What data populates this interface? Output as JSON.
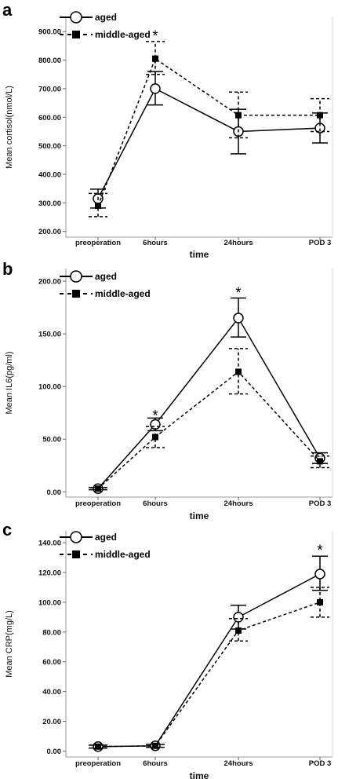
{
  "chart_data": [
    {
      "type": "line",
      "panel_label": "a",
      "ylabel": "Mean cortisol(nmol/L)",
      "xlabel": "time",
      "categories": [
        "preoperation",
        "6hours",
        "24hours",
        "POD 3"
      ],
      "yticks": [
        "200.00",
        "300.00",
        "400.00",
        "500.00",
        "600.00",
        "700.00",
        "800.00",
        "900.00"
      ],
      "ylim": [
        180,
        950
      ],
      "legend_position": "top-left",
      "series": [
        {
          "name": "aged",
          "values": [
            315,
            700,
            550,
            562
          ],
          "err_low": [
            282,
            643,
            472,
            510
          ],
          "err_high": [
            348,
            760,
            628,
            615
          ]
        },
        {
          "name": "middle-aged",
          "values": [
            290,
            805,
            607,
            607
          ],
          "err_low": [
            252,
            750,
            528,
            550
          ],
          "err_high": [
            333,
            865,
            688,
            665
          ]
        }
      ],
      "annotations": [
        {
          "text": "*",
          "category": "6hours",
          "y": 895
        }
      ]
    },
    {
      "type": "line",
      "panel_label": "b",
      "ylabel": "Mean IL6(pg/ml)",
      "xlabel": "time",
      "categories": [
        "preoperation",
        "6hours",
        "24hours",
        "POD 3"
      ],
      "yticks": [
        "0.00",
        "50.00",
        "100.00",
        "150.00",
        "200.00"
      ],
      "ylim": [
        -5,
        212
      ],
      "legend_position": "top-left",
      "series": [
        {
          "name": "aged",
          "values": [
            3,
            64,
            165,
            32
          ],
          "err_low": [
            2,
            58,
            147,
            27
          ],
          "err_high": [
            4,
            70,
            184,
            37
          ]
        },
        {
          "name": "middle-aged",
          "values": [
            3,
            52,
            114,
            29
          ],
          "err_low": [
            2,
            42,
            93,
            23
          ],
          "err_high": [
            4,
            62,
            136,
            34
          ]
        }
      ],
      "annotations": [
        {
          "text": "*",
          "category": "6hours",
          "y": 75
        },
        {
          "text": "*",
          "category": "24hours",
          "y": 192
        }
      ]
    },
    {
      "type": "line",
      "panel_label": "c",
      "ylabel": "Mean CRP(mg/L)",
      "xlabel": "time",
      "categories": [
        "preoperation",
        "6hours",
        "24hours",
        "POD 3"
      ],
      "yticks": [
        "0.00",
        "20.00",
        "40.00",
        "60.00",
        "80.00",
        "100.00",
        "120.00",
        "140.00"
      ],
      "ylim": [
        -4,
        148
      ],
      "legend_position": "top-left",
      "series": [
        {
          "name": "aged",
          "values": [
            3,
            3.5,
            90,
            119
          ],
          "err_low": [
            2,
            2.5,
            82,
            108
          ],
          "err_high": [
            4,
            4.5,
            98,
            131
          ]
        },
        {
          "name": "middle-aged",
          "values": [
            3,
            3.5,
            81,
            100
          ],
          "err_low": [
            2,
            2.5,
            74,
            90
          ],
          "err_high": [
            4,
            4.5,
            89,
            110
          ]
        }
      ],
      "annotations": [
        {
          "text": "*",
          "category": "POD 3",
          "y": 137
        }
      ]
    }
  ]
}
